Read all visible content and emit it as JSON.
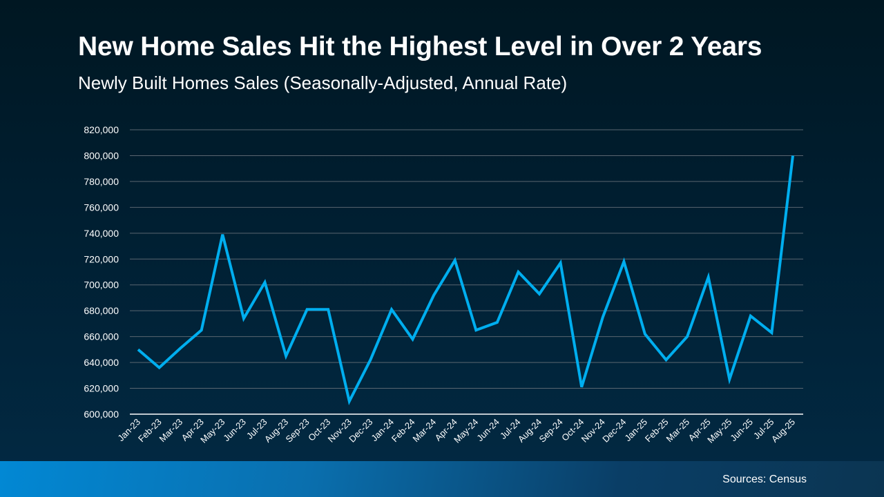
{
  "header": {
    "title": "New Home Sales Hit the Highest Level in Over 2 Years",
    "subtitle": "Newly Built Homes Sales (Seasonally-Adjusted, Annual Rate)"
  },
  "footer": {
    "source": "Sources: Census"
  },
  "colors": {
    "line": "#00aeef",
    "grid": "#5a6670",
    "axis": "#ffffff",
    "footer_start": "#0288d4",
    "footer_end": "#0b3552"
  },
  "chart_data": {
    "type": "line",
    "title": "New Home Sales Hit the Highest Level in Over 2 Years",
    "subtitle": "Newly Built Homes Sales (Seasonally-Adjusted, Annual Rate)",
    "xlabel": "",
    "ylabel": "",
    "ylim": [
      600000,
      820000
    ],
    "yticks": [
      "600,000",
      "620,000",
      "640,000",
      "660,000",
      "680,000",
      "700,000",
      "720,000",
      "740,000",
      "760,000",
      "780,000",
      "800,000",
      "820,000"
    ],
    "grid": true,
    "legend": "none",
    "categories": [
      "Jan-23",
      "Feb-23",
      "Mar-23",
      "Apr-23",
      "May-23",
      "Jun-23",
      "Jul-23",
      "Aug-23",
      "Sep-23",
      "Oct-23",
      "Nov-23",
      "Dec-23",
      "Jan-24",
      "Feb-24",
      "Mar-24",
      "Apr-24",
      "May-24",
      "Jun-24",
      "Jul-24",
      "Aug-24",
      "Sep-24",
      "Oct-24",
      "Nov-24",
      "Dec-24",
      "Jan-25",
      "Feb-25",
      "Mar-25",
      "Apr-25",
      "May-25",
      "Jun-25",
      "Jul-25",
      "Aug-25"
    ],
    "series": [
      {
        "values": [
          650000,
          636000,
          651000,
          665000,
          739000,
          674000,
          702000,
          645000,
          681000,
          681000,
          610000,
          642000,
          681000,
          658000,
          692000,
          719000,
          665000,
          671000,
          710000,
          693000,
          717000,
          621000,
          675000,
          718000,
          662000,
          642000,
          660000,
          706000,
          627000,
          676000,
          663000,
          800000
        ]
      }
    ]
  }
}
